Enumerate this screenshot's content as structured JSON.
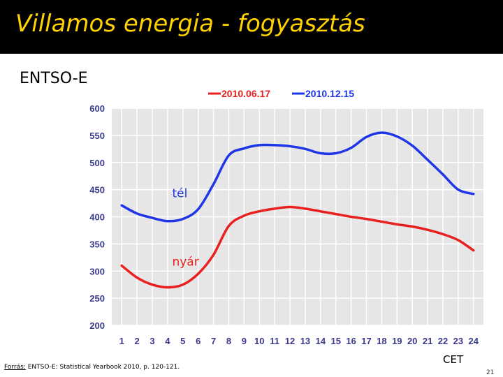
{
  "slide": {
    "title": "Villamos energia - fogyasztás",
    "subtitle": "ENTSO-E",
    "source_label": "Forrás:",
    "source_text": " ENTSO-E: Statistical Yearbook 2010, p. 120-121.",
    "unit": "CET",
    "page_number": "21"
  },
  "colors": {
    "title_bar": "#000000",
    "title_text": "#ffd200",
    "plot_bg": "#e6e6e6",
    "grid": "#ffffff",
    "tick_label": "#3a3a8c"
  },
  "chart_data": {
    "type": "line",
    "x": [
      1,
      2,
      3,
      4,
      5,
      6,
      7,
      8,
      9,
      10,
      11,
      12,
      13,
      14,
      15,
      16,
      17,
      18,
      19,
      20,
      21,
      22,
      23,
      24
    ],
    "ylim": [
      200,
      600
    ],
    "yticks": [
      200,
      250,
      300,
      350,
      400,
      450,
      500,
      550,
      600
    ],
    "grid": true,
    "legend_position": "top-center",
    "series": [
      {
        "name": "2010.06.17",
        "color": "#e8201f",
        "values": [
          310,
          288,
          275,
          270,
          275,
          295,
          330,
          383,
          402,
          410,
          415,
          418,
          415,
          410,
          405,
          400,
          396,
          391,
          386,
          382,
          376,
          368,
          357,
          338
        ]
      },
      {
        "name": "2010.12.15",
        "color": "#1f36e8",
        "values": [
          421,
          406,
          398,
          392,
          396,
          414,
          460,
          513,
          526,
          532,
          532,
          530,
          525,
          517,
          517,
          527,
          547,
          555,
          548,
          531,
          505,
          478,
          450,
          442
        ]
      }
    ],
    "annotations": [
      {
        "text": "tél",
        "x": 4.3,
        "y": 436,
        "color": "#1f36e8"
      },
      {
        "text": "nyár",
        "x": 4.3,
        "y": 310,
        "color": "#e8201f"
      }
    ]
  }
}
